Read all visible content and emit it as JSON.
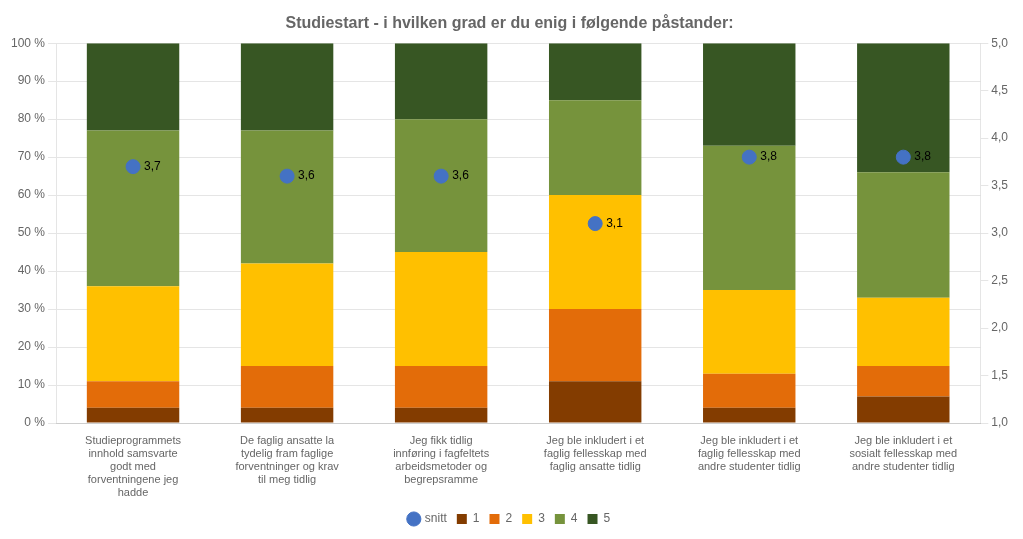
{
  "chart_data": {
    "type": "bar",
    "title": "Studiestart - i hvilken grad er du enig i følgende påstander:",
    "categories": [
      "Studieprogrammets\ninnhold samsvarte\ngodt med\nforventningene jeg\nhadde",
      "De faglig ansatte la\ntydelig fram faglige\nforventninger og krav\ntil meg tidlig",
      "Jeg fikk tidlig\ninnføring i fagfeltets\narbeidsmetoder og\nbegrepsramme",
      "Jeg ble inkludert i et\nfaglig fellesskap med\nfaglig ansatte tidlig",
      "Jeg ble inkludert i et\nfaglig fellesskap med\nandre studenter tidlig",
      "Jeg ble inkludert i et\nsosialt fellesskap med\nandre studenter tidlig"
    ],
    "stacked": true,
    "series": [
      {
        "name": "1",
        "color": "#833c00",
        "values": [
          4,
          4,
          4,
          11,
          4,
          7
        ]
      },
      {
        "name": "2",
        "color": "#e36c09",
        "values": [
          7,
          11,
          11,
          19,
          9,
          8
        ]
      },
      {
        "name": "3",
        "color": "#ffc000",
        "values": [
          25,
          27,
          30,
          30,
          22,
          18
        ]
      },
      {
        "name": "4",
        "color": "#76933c",
        "values": [
          41,
          35,
          35,
          25,
          38,
          33
        ]
      },
      {
        "name": "5",
        "color": "#375623",
        "values": [
          23,
          23,
          20,
          15,
          27,
          34
        ]
      },
      {
        "name": "snitt",
        "type": "scatter",
        "axis": "y2",
        "color": "#4472c4",
        "marker": "circle",
        "data_labels": true,
        "values": [
          3.7,
          3.6,
          3.6,
          3.1,
          3.8,
          3.8
        ],
        "value_labels": [
          "3,7",
          "3,6",
          "3,6",
          "3,1",
          "3,8",
          "3,8"
        ]
      }
    ],
    "ylim": [
      0,
      100
    ],
    "yticks": [
      {
        "value": 0,
        "label": "0 %"
      },
      {
        "value": 10,
        "label": "10 %"
      },
      {
        "value": 20,
        "label": "20 %"
      },
      {
        "value": 30,
        "label": "30 %"
      },
      {
        "value": 40,
        "label": "40 %"
      },
      {
        "value": 50,
        "label": "50 %"
      },
      {
        "value": 60,
        "label": "60 %"
      },
      {
        "value": 70,
        "label": "70 %"
      },
      {
        "value": 80,
        "label": "80 %"
      },
      {
        "value": 90,
        "label": "90 %"
      },
      {
        "value": 100,
        "label": "100 %"
      }
    ],
    "y2lim": [
      1.0,
      5.0
    ],
    "y2ticks": [
      {
        "value": 1.0,
        "label": "1,0"
      },
      {
        "value": 1.5,
        "label": "1,5"
      },
      {
        "value": 2.0,
        "label": "2,0"
      },
      {
        "value": 2.5,
        "label": "2,5"
      },
      {
        "value": 3.0,
        "label": "3,0"
      },
      {
        "value": 3.5,
        "label": "3,5"
      },
      {
        "value": 4.0,
        "label": "4,0"
      },
      {
        "value": 4.5,
        "label": "4,5"
      },
      {
        "value": 5.0,
        "label": "5,0"
      }
    ],
    "grid": true,
    "legend": "bottom"
  }
}
